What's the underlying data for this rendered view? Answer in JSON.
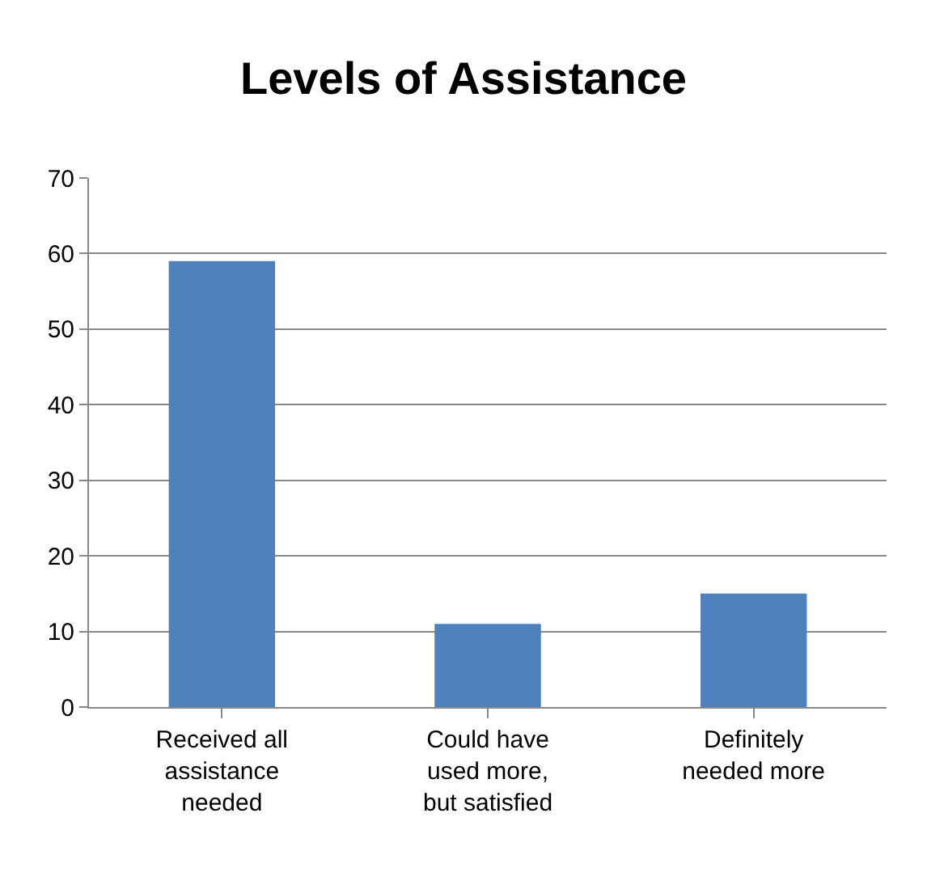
{
  "chart_data": {
    "type": "bar",
    "title": "Levels of Assistance",
    "categories": [
      "Received all assistance needed",
      "Could have used more, but satisfied",
      "Definitely needed more"
    ],
    "values": [
      59,
      11,
      15
    ],
    "color": "#4f81bd",
    "ylim": [
      0,
      70
    ],
    "yticks": [
      0,
      10,
      20,
      30,
      40,
      50,
      60,
      70
    ],
    "grid": "y"
  }
}
